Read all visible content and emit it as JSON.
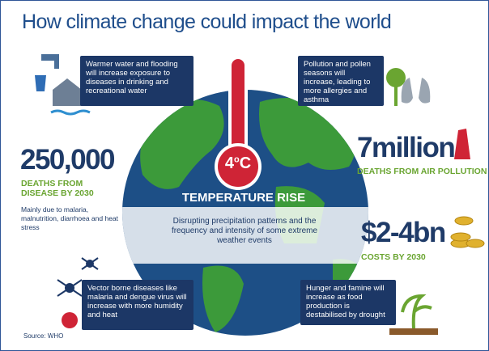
{
  "title": "How climate change could impact the world",
  "water": {
    "text": "Warmer water and flooding will increase exposure to diseases in drinking and recreational water"
  },
  "pollution": {
    "text": "Pollution and pollen seasons will increase, leading to more allergies and asthma"
  },
  "disease_deaths": {
    "figure": "250,000",
    "label": "DEATHS FROM DISEASE BY 2030",
    "note": "Mainly due to malaria, malnutrition, diarrhoea and heat stress"
  },
  "air_pollution": {
    "figure": "7million",
    "label": "DEATHS FROM AIR POLLUTION"
  },
  "costs": {
    "figure": "$2-4bn",
    "label": "COSTS BY 2030"
  },
  "thermometer": {
    "number": "4",
    "degree": "o",
    "unit": "C",
    "label": "TEMPERATURE RISE"
  },
  "precipitation": {
    "text": "Disrupting precipitation patterns and the frequency and intensity of some extreme weather events"
  },
  "vector": {
    "text": "Vector borne diseases like malaria and dengue virus will increase with more humidity and heat"
  },
  "hunger": {
    "text": "Hunger and famine will increase as food production is destabilised by drought"
  },
  "source": "Source: WHO"
}
